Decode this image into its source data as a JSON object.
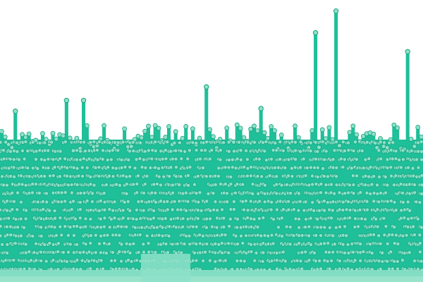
{
  "chart_data": {
    "type": "lollipop",
    "title": "",
    "xlabel": "",
    "ylabel": "",
    "x_count": 124,
    "ylim": [
      0,
      100
    ],
    "point_count": 5632,
    "grid": false,
    "legend": "none",
    "line_color": "#1fbf99",
    "dot_fill": "#8ee0c8",
    "dot_stroke": "#15a37f",
    "background_color": "#ffffff",
    "baseline_band_color": "#8ee0c8",
    "highlight_columns": [
      {
        "index": 92,
        "value": 90
      },
      {
        "index": 98,
        "value": 98
      },
      {
        "index": 119,
        "value": 83
      },
      {
        "index": 60,
        "value": 70
      },
      {
        "index": 24,
        "value": 65
      },
      {
        "index": 76,
        "value": 62
      },
      {
        "index": 4,
        "value": 61
      },
      {
        "index": 19,
        "value": 65
      }
    ]
  }
}
